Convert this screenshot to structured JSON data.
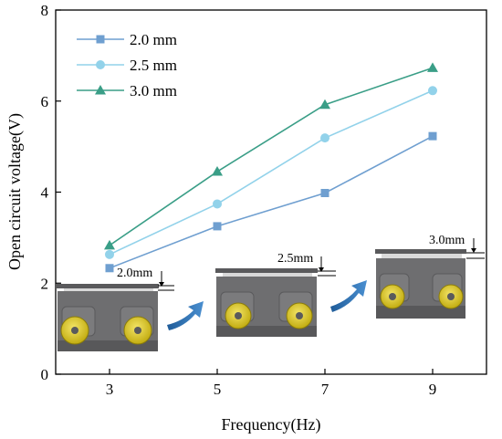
{
  "chart_data": {
    "type": "line",
    "xlabel": "Frequency(Hz)",
    "ylabel": "Open circuit voltage(V)",
    "x": [
      3,
      5,
      7,
      9
    ],
    "xlim": [
      2,
      10
    ],
    "ylim": [
      0,
      8
    ],
    "xticks": [
      3,
      5,
      7,
      9
    ],
    "yticks": [
      0,
      2,
      4,
      6,
      8
    ],
    "grid": false,
    "legend": "top-left",
    "series": [
      {
        "name": "2.0 mm",
        "values": [
          2.33,
          3.25,
          3.98,
          5.23
        ],
        "marker": "square",
        "color": "#6f9fd0"
      },
      {
        "name": "2.5 mm",
        "values": [
          2.63,
          3.74,
          5.19,
          6.23
        ],
        "marker": "circle",
        "color": "#92d2ea"
      },
      {
        "name": "3.0 mm",
        "values": [
          2.83,
          4.45,
          5.92,
          6.73
        ],
        "marker": "triangle",
        "color": "#3a9e87"
      }
    ],
    "device_labels": [
      "2.0mm",
      "2.5mm",
      "3.0mm"
    ]
  },
  "colors": {
    "axis": "#000000",
    "device_body": "#6e6e70",
    "device_dark": "#4a4a4c",
    "magnet": "#d8c420",
    "arrow": "#2e6fb0"
  }
}
